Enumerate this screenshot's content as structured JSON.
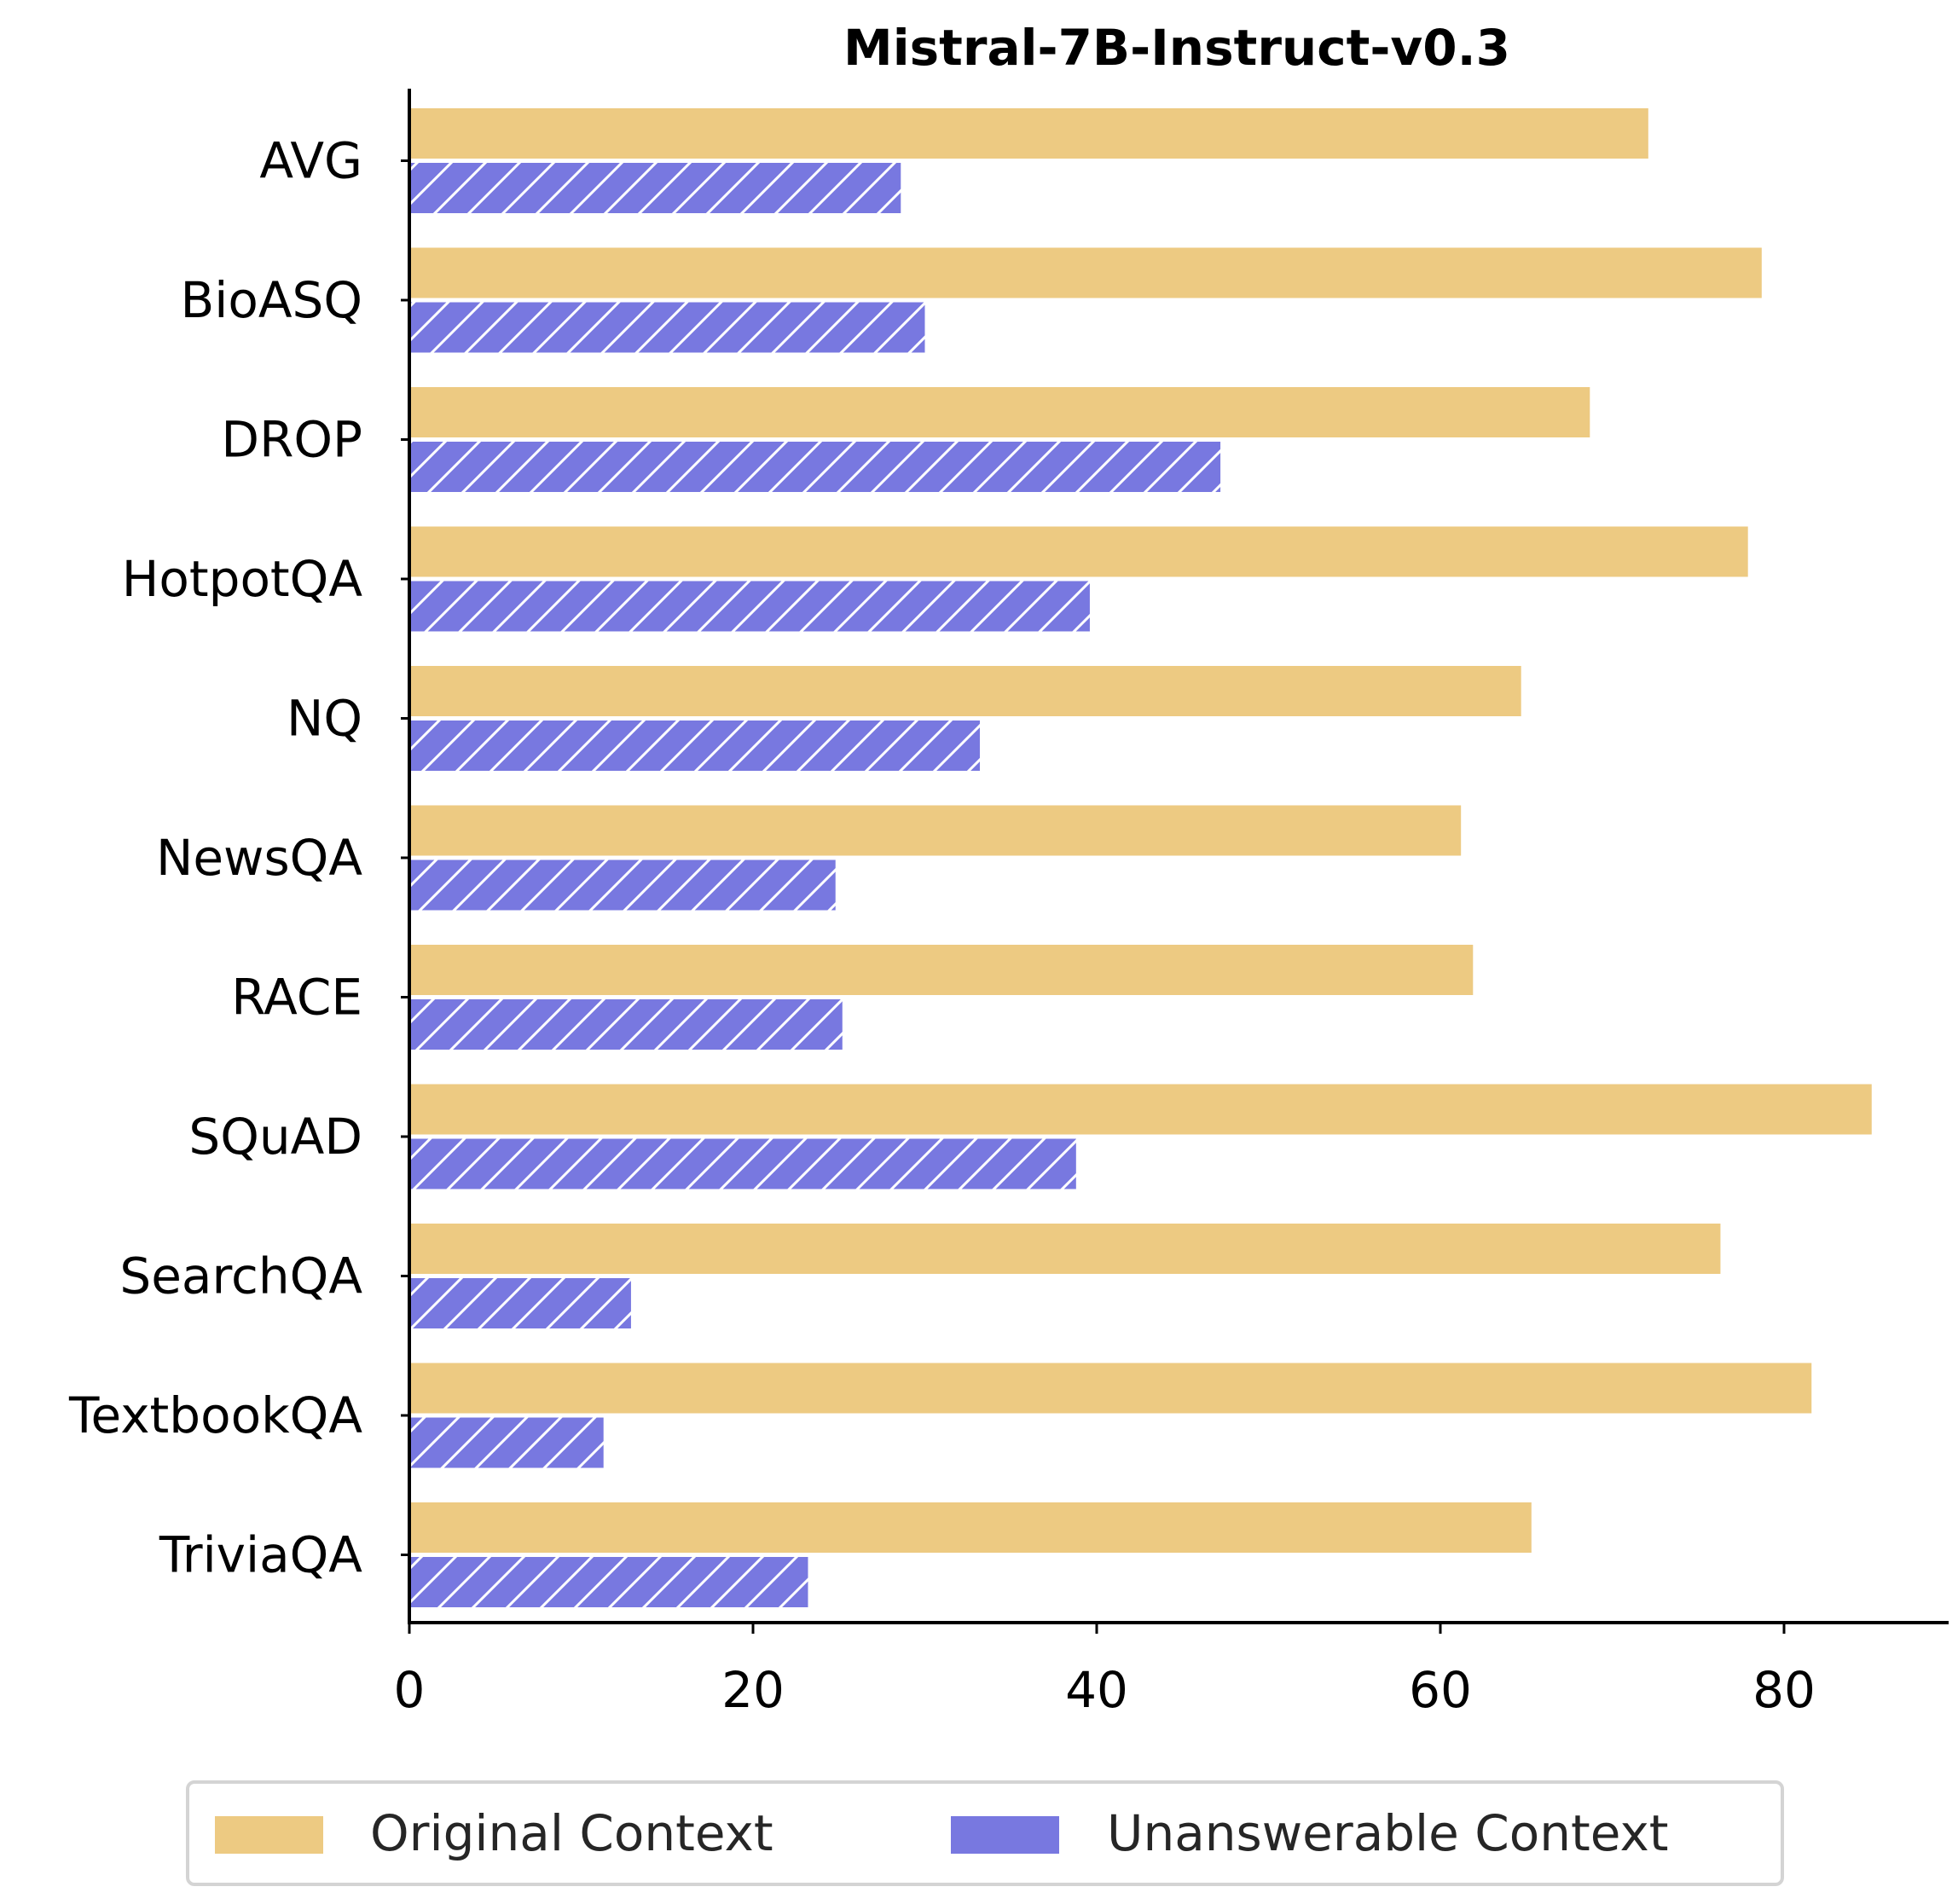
{
  "chart_data": {
    "type": "bar",
    "orientation": "horizontal",
    "title": "Mistral-7B-Instruct-v0.3",
    "xlabel": "",
    "ylabel": "",
    "categories": [
      "AVG",
      "BioASQ",
      "DROP",
      "HotpotQA",
      "NQ",
      "NewsQA",
      "RACE",
      "SQuAD",
      "SearchQA",
      "TextbookQA",
      "TriviaQA"
    ],
    "series": [
      {
        "name": "Original Context",
        "color": "#edca82",
        "hatch": false,
        "values": [
          72.1,
          78.7,
          68.7,
          77.9,
          64.7,
          61.2,
          61.9,
          85.1,
          76.3,
          81.6,
          65.3
        ]
      },
      {
        "name": "Unanswerable Context",
        "color": "#7878e0",
        "hatch": true,
        "values": [
          28.6,
          30.0,
          47.2,
          39.6,
          33.2,
          24.8,
          25.2,
          38.8,
          12.9,
          11.3,
          23.2
        ]
      }
    ],
    "xlim": [
      0,
      90
    ],
    "xticks": [
      0,
      20,
      40,
      60,
      80
    ],
    "grid": false,
    "legend_position": "bottom-center"
  }
}
